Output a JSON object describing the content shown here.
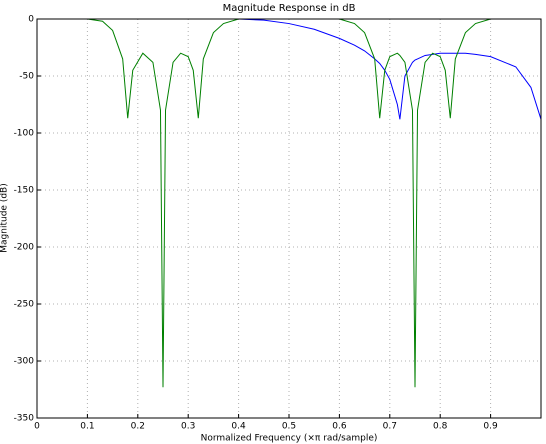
{
  "chart_data": {
    "type": "line",
    "title": "Magnitude Response in dB",
    "xlabel": "Normalized Frequency  (×π rad/sample)",
    "ylabel": "Magnitude (dB)",
    "x": [
      0,
      0.1,
      0.13,
      0.15,
      0.17,
      0.18,
      0.19,
      0.21,
      0.23,
      0.245,
      0.25,
      0.255,
      0.27,
      0.285,
      0.3,
      0.31,
      0.32,
      0.33,
      0.35,
      0.37,
      0.4,
      0.45,
      0.5,
      0.55,
      0.6,
      0.63,
      0.65,
      0.67,
      0.68,
      0.69,
      0.7,
      0.715,
      0.72,
      0.73,
      0.745,
      0.75,
      0.755,
      0.77,
      0.785,
      0.8,
      0.81,
      0.82,
      0.83,
      0.85,
      0.87,
      0.9,
      0.95,
      0.98,
      1
    ],
    "series": [
      {
        "color": "#0000ff",
        "values": [
          0,
          0,
          0,
          0,
          0,
          0,
          0,
          0,
          0,
          0,
          0,
          0,
          0,
          0,
          0,
          0,
          0,
          0,
          0,
          0,
          0,
          -1,
          -4,
          -9,
          -17,
          -23,
          -28,
          -35,
          -39,
          -45,
          -53,
          -75,
          -88,
          -50,
          -38,
          -36,
          -35,
          -32,
          -31,
          -30,
          -30,
          -30,
          -30,
          -30,
          -31,
          -33,
          -42,
          -60,
          -88
        ]
      },
      {
        "color": "#008000",
        "values": [
          0,
          0,
          -2,
          -10,
          -35,
          -87,
          -45,
          -30,
          -38,
          -80,
          -323,
          -80,
          -38,
          -30,
          -33,
          -45,
          -87,
          -35,
          -12,
          -4,
          0,
          0,
          0,
          0,
          0,
          -4,
          -12,
          -35,
          -87,
          -45,
          -33,
          -30,
          -32,
          -38,
          -80,
          -323,
          -80,
          -38,
          -30,
          -33,
          -45,
          -87,
          -35,
          -12,
          -4,
          0,
          0,
          0,
          0
        ]
      }
    ],
    "xlim": [
      0,
      1
    ],
    "ylim": [
      -350,
      0
    ],
    "xticks": [
      0,
      0.1,
      0.2,
      0.3,
      0.4,
      0.5,
      0.6,
      0.7,
      0.8,
      0.9
    ],
    "yticks": [
      0,
      -50,
      -100,
      -150,
      -200,
      -250,
      -300,
      -350
    ],
    "grid": true
  }
}
